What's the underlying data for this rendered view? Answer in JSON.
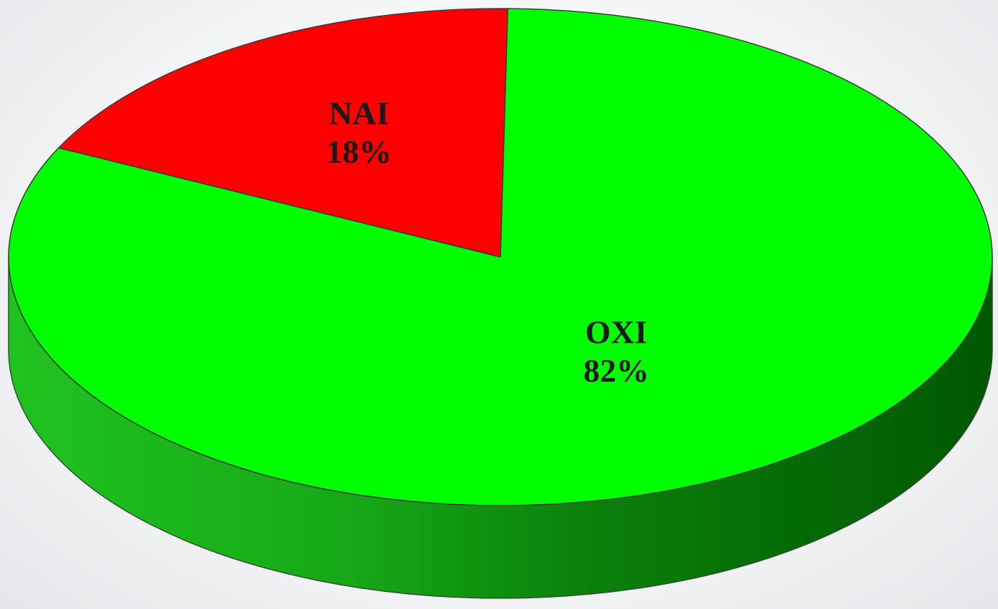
{
  "chart_data": {
    "type": "pie",
    "style": "3d",
    "title": "",
    "slices": [
      {
        "label": "NAI",
        "value": 18,
        "value_label": "18%",
        "color": "#ff0000",
        "side_color": "#b30000"
      },
      {
        "label": "OXI",
        "value": 82,
        "value_label": "82%",
        "color": "#00ff00",
        "side_color": "#007a00"
      }
    ],
    "legend": false
  }
}
